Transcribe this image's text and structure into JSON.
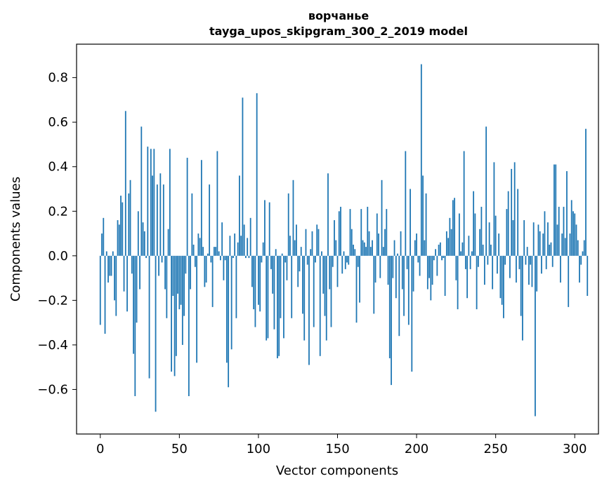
{
  "chart_data": {
    "type": "bar",
    "title": "ворчанье",
    "subtitle": "tayga_upos_skipgram_300_2_2019 model",
    "xlabel": "Vector components",
    "ylabel": "Components values",
    "xlim": [
      -15,
      315
    ],
    "ylim": [
      -0.8,
      0.95
    ],
    "xticks": [
      0,
      50,
      100,
      150,
      200,
      250,
      300
    ],
    "yticks": [
      -0.6,
      -0.4,
      -0.2,
      0.0,
      0.2,
      0.4,
      0.6,
      0.8
    ],
    "xtick_labels": [
      "0",
      "50",
      "100",
      "150",
      "200",
      "250",
      "300"
    ],
    "ytick_labels": [
      "−0.6",
      "−0.4",
      "−0.2",
      "0.0",
      "0.2",
      "0.4",
      "0.6",
      "0.8"
    ],
    "bar_color": "#1f77b4",
    "grid": false,
    "values": [
      -0.31,
      0.1,
      0.17,
      -0.35,
      0.02,
      -0.12,
      -0.09,
      -0.09,
      0.02,
      -0.2,
      -0.27,
      0.16,
      0.14,
      0.27,
      0.24,
      -0.16,
      0.65,
      -0.25,
      0.28,
      0.34,
      -0.08,
      -0.44,
      -0.63,
      -0.3,
      0.2,
      -0.15,
      0.58,
      0.15,
      0.11,
      -0.01,
      0.49,
      -0.55,
      0.48,
      0.36,
      0.48,
      -0.7,
      0.32,
      -0.09,
      0.37,
      -0.03,
      0.32,
      -0.15,
      -0.28,
      0.12,
      0.48,
      -0.52,
      -0.18,
      -0.54,
      -0.45,
      -0.17,
      -0.24,
      -0.22,
      -0.4,
      -0.27,
      -0.08,
      0.44,
      -0.63,
      -0.15,
      0.28,
      0.05,
      -0.05,
      -0.48,
      0.1,
      0.08,
      0.43,
      0.04,
      -0.14,
      -0.12,
      0.01,
      0.32,
      -0.03,
      -0.23,
      0.04,
      0.04,
      0.47,
      0.02,
      -0.02,
      0.15,
      -0.11,
      -0.02,
      -0.48,
      -0.59,
      0.09,
      -0.42,
      -0.01,
      0.1,
      -0.28,
      0.06,
      0.36,
      0.09,
      0.71,
      0.14,
      -0.01,
      0.08,
      -0.01,
      0.17,
      -0.14,
      -0.24,
      -0.32,
      0.73,
      -0.22,
      -0.25,
      -0.03,
      0.06,
      0.25,
      -0.38,
      -0.37,
      0.24,
      -0.06,
      -0.17,
      -0.33,
      0.03,
      -0.46,
      -0.45,
      -0.28,
      0.01,
      -0.37,
      -0.03,
      -0.11,
      0.28,
      0.09,
      -0.28,
      0.34,
      0.07,
      0.14,
      -0.14,
      -0.07,
      0.04,
      -0.26,
      -0.38,
      0.12,
      -0.04,
      -0.49,
      0.03,
      0.11,
      -0.32,
      -0.03,
      0.14,
      0.12,
      -0.45,
      0.02,
      -0.17,
      -0.27,
      -0.38,
      0.37,
      -0.15,
      -0.32,
      -0.05,
      0.16,
      0.07,
      -0.14,
      0.2,
      0.22,
      -0.08,
      0.02,
      -0.06,
      -0.03,
      -0.04,
      0.21,
      0.12,
      0.05,
      0.03,
      -0.3,
      -0.05,
      -0.21,
      0.21,
      0.07,
      0.06,
      0.04,
      0.22,
      0.11,
      0.04,
      0.07,
      -0.26,
      -0.12,
      0.19,
      0.1,
      -0.1,
      0.34,
      0.04,
      0.12,
      0.21,
      -0.13,
      -0.46,
      -0.58,
      -0.1,
      0.07,
      -0.19,
      0.01,
      -0.36,
      0.11,
      -0.15,
      -0.27,
      0.47,
      -0.06,
      -0.31,
      0.3,
      -0.52,
      -0.16,
      0.07,
      0.1,
      -0.03,
      -0.09,
      0.86,
      0.36,
      0.07,
      0.28,
      -0.15,
      -0.1,
      -0.2,
      -0.13,
      -0.02,
      0.03,
      -0.09,
      0.05,
      0.06,
      -0.02,
      -0.01,
      -0.18,
      0.11,
      0.08,
      0.17,
      0.12,
      0.25,
      0.26,
      -0.11,
      -0.24,
      0.19,
      0.02,
      0.06,
      0.47,
      -0.06,
      -0.19,
      0.09,
      -0.06,
      0.02,
      0.29,
      0.19,
      -0.24,
      -0.05,
      0.12,
      0.22,
      0.05,
      -0.13,
      0.58,
      -0.04,
      0.15,
      0.05,
      -0.15,
      0.42,
      0.18,
      -0.08,
      0.1,
      -0.19,
      -0.22,
      -0.28,
      -0.04,
      0.21,
      0.29,
      -0.1,
      0.39,
      0.16,
      0.42,
      -0.12,
      0.3,
      -0.06,
      -0.27,
      -0.38,
      0.16,
      -0.04,
      0.04,
      -0.13,
      -0.04,
      -0.14,
      0.15,
      -0.72,
      -0.16,
      0.14,
      0.11,
      -0.08,
      0.1,
      0.2,
      -0.06,
      0.15,
      0.05,
      0.06,
      -0.05,
      0.41,
      0.41,
      0.14,
      0.22,
      -0.12,
      0.1,
      0.22,
      0.08,
      0.38,
      -0.23,
      0.1,
      0.25,
      0.2,
      0.19,
      0.14,
      0.07,
      -0.12,
      -0.04,
      0.02,
      0.07,
      0.57,
      -0.18
    ]
  }
}
